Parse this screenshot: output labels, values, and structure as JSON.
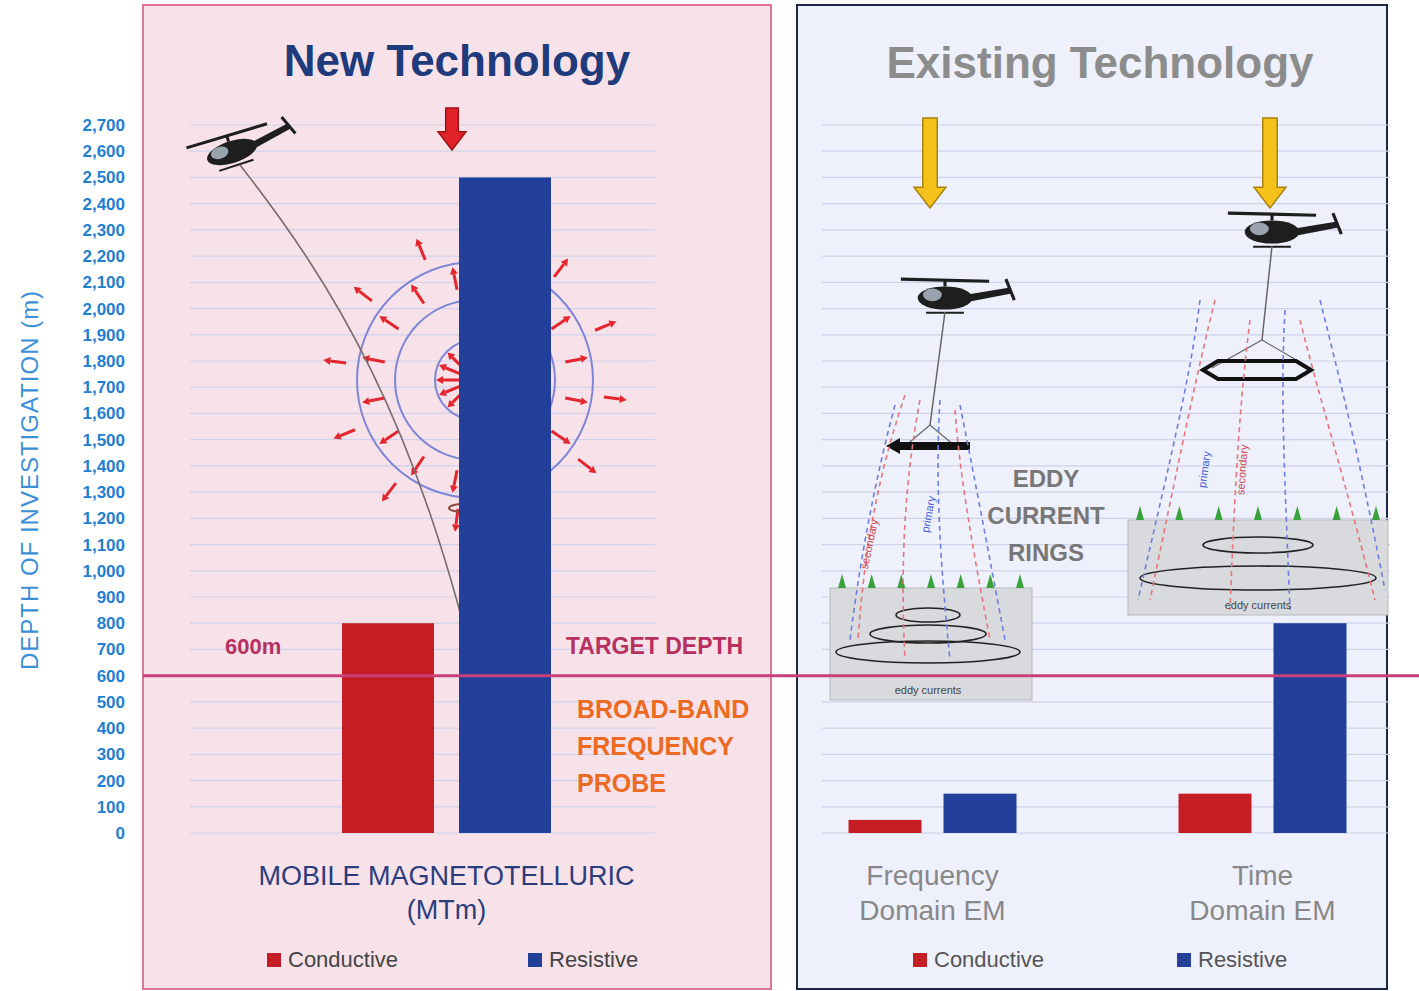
{
  "chart_data": [
    {
      "type": "bar",
      "title": "New Technology",
      "y_label": "DEPTH OF INVESTIGATION (m)",
      "categories": [
        "MOBILE MAGNETOTELLURIC (MTm)"
      ],
      "series": [
        {
          "name": "Conductive",
          "color": "#c41e24",
          "values": [
            800
          ]
        },
        {
          "name": "Resistive",
          "color": "#22409a",
          "values": [
            2500
          ]
        }
      ],
      "ylim": [
        0,
        2700
      ],
      "yticks": [
        0,
        100,
        200,
        300,
        400,
        500,
        600,
        700,
        800,
        900,
        {
          "value": 1000,
          "label": "1,000"
        },
        {
          "value": 1100,
          "label": "1,100"
        },
        {
          "value": 1200,
          "label": "1,200"
        },
        {
          "value": 1300,
          "label": "1,300"
        },
        {
          "value": 1400,
          "label": "1,400"
        },
        {
          "value": 1500,
          "label": "1,500"
        },
        {
          "value": 1600,
          "label": "1,600"
        },
        {
          "value": 1700,
          "label": "1,700"
        },
        {
          "value": 1800,
          "label": "1,800"
        },
        {
          "value": 1900,
          "label": "1,900"
        },
        {
          "value": 2000,
          "label": "2,000"
        },
        {
          "value": 2100,
          "label": "2,100"
        },
        {
          "value": 2200,
          "label": "2,200"
        },
        {
          "value": 2300,
          "label": "2,300"
        },
        {
          "value": 2400,
          "label": "2,400"
        },
        {
          "value": 2500,
          "label": "2,500"
        },
        {
          "value": 2600,
          "label": "2,600"
        },
        {
          "value": 2700,
          "label": "2,700"
        }
      ],
      "grid": true,
      "legend": "bottom",
      "target": {
        "value": 600,
        "value_label": "600m",
        "label": "TARGET DEPTH"
      },
      "annotations": [
        "BROAD-BAND FREQUENCY PROBE"
      ]
    },
    {
      "type": "bar",
      "title": "Existing Technology",
      "categories": [
        "Frequency Domain EM",
        "Time Domain EM"
      ],
      "series": [
        {
          "name": "Conductive",
          "color": "#c41e24",
          "values": [
            50,
            150
          ]
        },
        {
          "name": "Resistive",
          "color": "#22409a",
          "values": [
            150,
            800
          ]
        }
      ],
      "ylim": [
        0,
        2700
      ],
      "yticks": [
        0,
        100,
        200,
        300,
        400,
        500,
        600,
        700,
        800,
        900,
        {
          "value": 1000,
          "label": "1,000"
        },
        {
          "value": 1100,
          "label": "1,100"
        },
        {
          "value": 1200,
          "label": "1,200"
        },
        {
          "value": 1300,
          "label": "1,300"
        },
        {
          "value": 1400,
          "label": "1,400"
        },
        {
          "value": 1500,
          "label": "1,500"
        },
        {
          "value": 1600,
          "label": "1,600"
        },
        {
          "value": 1700,
          "label": "1,700"
        },
        {
          "value": 1800,
          "label": "1,800"
        },
        {
          "value": 1900,
          "label": "1,900"
        },
        {
          "value": 2000,
          "label": "2,000"
        },
        {
          "value": 2100,
          "label": "2,100"
        },
        {
          "value": 2200,
          "label": "2,200"
        },
        {
          "value": 2300,
          "label": "2,300"
        },
        {
          "value": 2400,
          "label": "2,400"
        },
        {
          "value": 2500,
          "label": "2,500"
        },
        {
          "value": 2600,
          "label": "2,600"
        },
        {
          "value": 2700,
          "label": "2,700"
        }
      ],
      "grid": true,
      "legend": "bottom",
      "tick_labels": "x",
      "annotations": [
        "EDDY CURRENT RINGS",
        "primary",
        "secondary",
        "eddy currents"
      ]
    }
  ]
}
